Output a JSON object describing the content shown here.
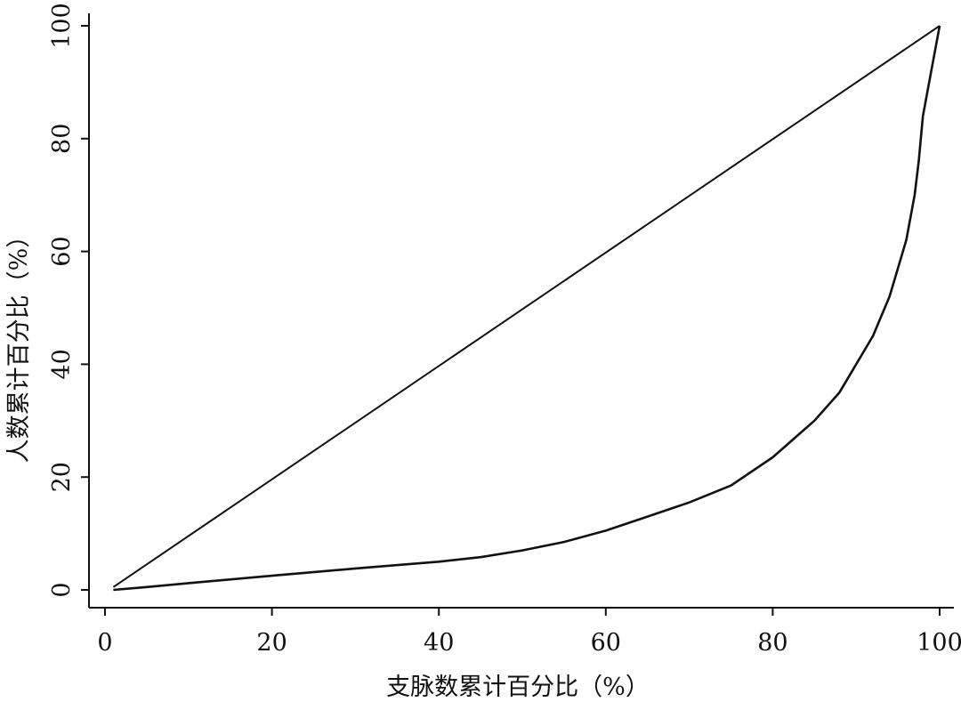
{
  "chart_data": {
    "type": "line",
    "title": "",
    "xlabel": "支脉数累计百分比（%）",
    "ylabel": "人数累计百分比（%）",
    "xlim": [
      0,
      100
    ],
    "ylim": [
      0,
      100
    ],
    "x_ticks": [
      "0",
      "20",
      "40",
      "60",
      "80",
      "100"
    ],
    "y_ticks": [
      "0",
      "20",
      "40",
      "60",
      "80",
      "100"
    ],
    "grid": false,
    "legend": "none",
    "line_color": "#111111",
    "series": [
      {
        "x": [
          1,
          100
        ],
        "y": [
          0.5,
          100
        ]
      },
      {
        "x": [
          1,
          5,
          10,
          20,
          30,
          40,
          45,
          50,
          55,
          60,
          65,
          70,
          75,
          80,
          85,
          88,
          90,
          92,
          94,
          95,
          96,
          97,
          97.5,
          98,
          99,
          100
        ],
        "y": [
          0,
          0.5,
          1.2,
          2.5,
          3.8,
          5,
          5.8,
          7,
          8.5,
          10.5,
          13,
          15.5,
          18.5,
          23.5,
          30,
          35,
          40,
          45,
          52,
          57,
          62,
          70,
          76,
          84,
          92,
          100
        ]
      }
    ]
  }
}
